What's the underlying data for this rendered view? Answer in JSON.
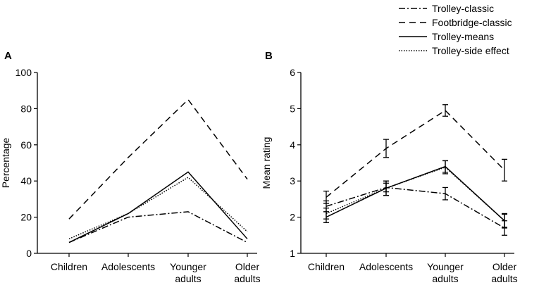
{
  "chart_data": [
    {
      "type": "line",
      "panel_label": "A",
      "ylabel": "Percentage",
      "xlabel": "",
      "categories": [
        [
          "Children"
        ],
        [
          "Adolescents"
        ],
        [
          "Younger",
          "adults"
        ],
        [
          "Older",
          "adults"
        ]
      ],
      "ylim": [
        0,
        100
      ],
      "yticks": [
        0,
        20,
        40,
        60,
        80,
        100
      ],
      "series": [
        {
          "name": "Trolley-classic",
          "values": [
            6,
            20,
            23,
            6
          ]
        },
        {
          "name": "Footbridge-classic",
          "values": [
            19,
            53,
            85,
            41
          ]
        },
        {
          "name": "Trolley-means",
          "values": [
            6,
            22,
            45,
            8
          ]
        },
        {
          "name": "Trolley-side effect",
          "values": [
            8,
            22,
            42,
            12
          ]
        }
      ]
    },
    {
      "type": "line",
      "panel_label": "B",
      "ylabel": "Mean rating",
      "xlabel": "",
      "categories": [
        [
          "Children"
        ],
        [
          "Adolescents"
        ],
        [
          "Younger",
          "adults"
        ],
        [
          "Older",
          "adults"
        ]
      ],
      "ylim": [
        1,
        6
      ],
      "yticks": [
        1,
        2,
        3,
        4,
        5,
        6
      ],
      "series": [
        {
          "name": "Trolley-classic",
          "values": [
            2.3,
            2.82,
            2.65,
            1.7
          ],
          "errors": [
            0.15,
            0.12,
            0.17,
            0.2
          ]
        },
        {
          "name": "Footbridge-classic",
          "values": [
            2.55,
            3.9,
            4.95,
            3.3
          ],
          "errors": [
            0.17,
            0.25,
            0.16,
            0.3
          ]
        },
        {
          "name": "Trolley-means",
          "values": [
            2.0,
            2.8,
            3.4,
            1.9
          ],
          "errors": [
            0.15,
            0.2,
            0.16,
            0.18
          ]
        },
        {
          "name": "Trolley-side effect",
          "values": [
            2.1,
            2.8,
            3.38,
            1.9
          ],
          "errors": [
            0.15,
            0.2,
            0.18,
            0.2
          ]
        }
      ]
    }
  ],
  "legend": {
    "placement": "top-right",
    "entries": [
      "Trolley-classic",
      "Footbridge-classic",
      "Trolley-means",
      "Trolley-side effect"
    ]
  },
  "styles": {
    "Trolley-classic": "dash-dot",
    "Footbridge-classic": "dashed",
    "Trolley-means": "solid",
    "Trolley-side effect": "dotted"
  },
  "colors": {
    "line": "#000000",
    "background": "#ffffff"
  }
}
